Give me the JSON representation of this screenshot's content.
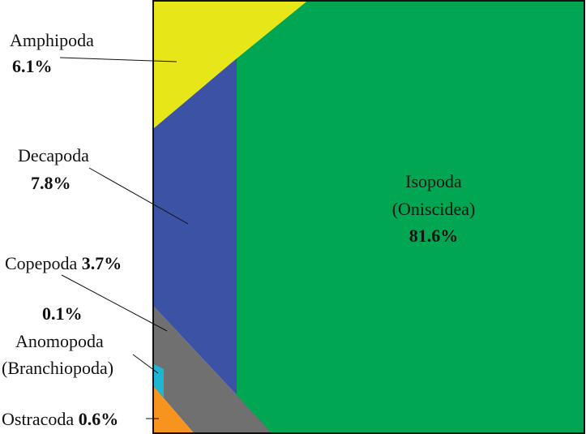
{
  "chart_data": {
    "type": "area",
    "title": "",
    "series": [
      {
        "name": "Isopoda (Oniscidea)",
        "value": 81.6,
        "color": "#00a651"
      },
      {
        "name": "Decapoda",
        "value": 7.8,
        "color": "#3c52a5"
      },
      {
        "name": "Amphipoda",
        "value": 6.1,
        "color": "#e6e619"
      },
      {
        "name": "Copepoda",
        "value": 3.7,
        "color": "#707070"
      },
      {
        "name": "Ostracoda",
        "value": 0.6,
        "color": "#f7941e"
      },
      {
        "name": "Anomopoda (Branchiopoda)",
        "value": 0.1,
        "color": "#1fb6d4"
      }
    ]
  },
  "labels": {
    "amphipoda": {
      "name": "Amphipoda",
      "pct": "6.1%"
    },
    "decapoda": {
      "name": "Decapoda",
      "pct": "7.8%"
    },
    "copepoda": {
      "name": "Copepoda",
      "pct": "3.7%"
    },
    "anomopoda": {
      "pct": "0.1%",
      "name": "Anomopoda",
      "sub": "(Branchiopoda)"
    },
    "ostracoda": {
      "name": "Ostracoda",
      "pct": "0.6%"
    },
    "isopoda": {
      "name": "Isopoda",
      "sub": "(Oniscidea)",
      "pct": "81.6%"
    }
  }
}
